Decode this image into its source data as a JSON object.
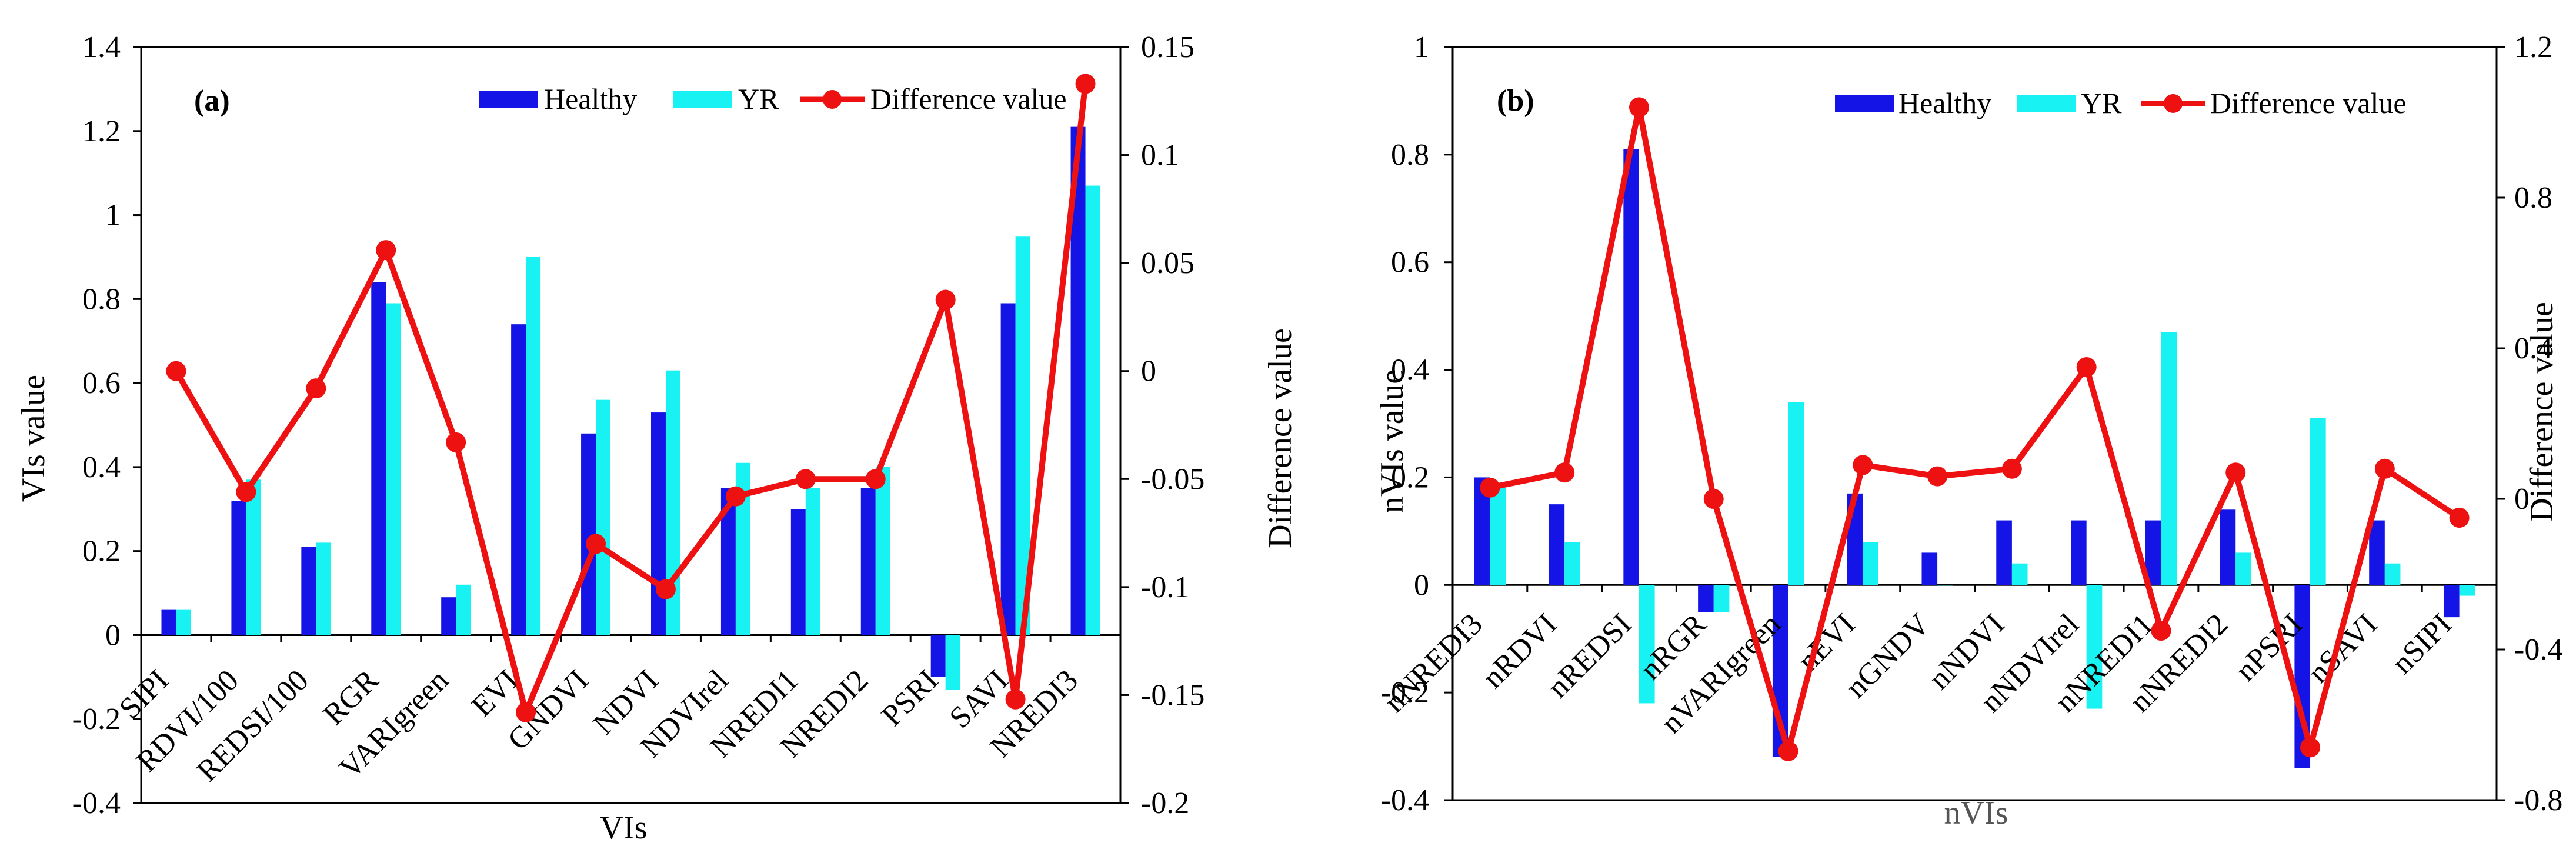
{
  "colors": {
    "healthy": "#1414E6",
    "yr": "#19F2F2",
    "difference": "#EE1111",
    "axis": "#000000"
  },
  "legend_labels": {
    "healthy": "Healthy",
    "yr": "YR",
    "difference": "Difference value"
  },
  "chart_data": [
    {
      "type": "bar",
      "panel_label": "(a)",
      "xlabel": "VIs",
      "ylabel": "VIs value",
      "y2label": "Difference value",
      "ylim": [
        -0.4,
        1.4
      ],
      "y2lim": [
        -0.2,
        0.15
      ],
      "yticks": [
        "-0.4",
        "-0.2",
        "0",
        "0.2",
        "0.4",
        "0.6",
        "0.8",
        "1",
        "1.2",
        "1.4"
      ],
      "y2ticks": [
        "-0.2",
        "-0.15",
        "-0.1",
        "-0.05",
        "0",
        "0.05",
        "0.1",
        "0.15"
      ],
      "legend_position": "top-right",
      "categories": [
        "SIPI",
        "RDVI/100",
        "REDSI/100",
        "RGR",
        "VARIgreen",
        "EVI",
        "GNDVI",
        "NDVI",
        "NDVIrel",
        "NREDI1",
        "NREDI2",
        "PSRI",
        "SAVI",
        "NREDI3"
      ],
      "series": [
        {
          "name": "Healthy",
          "axis": "left",
          "kind": "bar",
          "values": [
            0.06,
            0.32,
            0.21,
            0.84,
            0.09,
            0.74,
            0.48,
            0.53,
            0.35,
            0.3,
            0.35,
            -0.1,
            0.79,
            1.21
          ]
        },
        {
          "name": "YR",
          "axis": "left",
          "kind": "bar",
          "values": [
            0.06,
            0.37,
            0.22,
            0.79,
            0.12,
            0.9,
            0.56,
            0.63,
            0.41,
            0.35,
            0.4,
            -0.13,
            0.95,
            1.07
          ]
        },
        {
          "name": "Difference value",
          "axis": "right",
          "kind": "line",
          "values": [
            0.0,
            -0.056,
            -0.008,
            0.056,
            -0.033,
            -0.158,
            -0.08,
            -0.101,
            -0.058,
            -0.05,
            -0.05,
            0.033,
            -0.152,
            0.133
          ]
        }
      ]
    },
    {
      "type": "bar",
      "panel_label": "(b)",
      "xlabel": "nVIs",
      "ylabel": "nVIs value",
      "y2label": "Difference value",
      "ylim": [
        -0.4,
        1.0
      ],
      "y2lim": [
        -0.8,
        1.2
      ],
      "yticks": [
        "-0.4",
        "-0.2",
        "0",
        "0.2",
        "0.4",
        "0.6",
        "0.8",
        "1"
      ],
      "y2ticks": [
        "-0.8",
        "-0.4",
        "0",
        "0.4",
        "0.8",
        "1.2"
      ],
      "legend_position": "top-right",
      "categories": [
        "nNREDI3",
        "nRDVI",
        "nREDSI",
        "nRGR",
        "nVARIgreen",
        "nEVI",
        "nGNDV",
        "nNDVI",
        "nNDVIrel",
        "nNREDI1",
        "nNREDI2",
        "nPSRI",
        "nSAVI",
        "nSIPI"
      ],
      "series": [
        {
          "name": "Healthy",
          "axis": "left",
          "kind": "bar",
          "values": [
            0.2,
            0.15,
            0.81,
            -0.05,
            -0.32,
            0.17,
            0.06,
            0.12,
            0.12,
            0.12,
            0.14,
            -0.34,
            0.12,
            -0.06
          ]
        },
        {
          "name": "YR",
          "axis": "left",
          "kind": "bar",
          "values": [
            0.18,
            0.08,
            -0.22,
            -0.05,
            0.34,
            0.08,
            0.0,
            0.04,
            -0.23,
            0.47,
            0.06,
            0.31,
            0.04,
            -0.02
          ]
        },
        {
          "name": "Difference value",
          "axis": "right",
          "kind": "line",
          "values": [
            0.03,
            0.07,
            1.04,
            0.0,
            -0.67,
            0.09,
            0.06,
            0.08,
            0.35,
            -0.35,
            0.07,
            -0.66,
            0.08,
            -0.05
          ]
        }
      ]
    }
  ]
}
